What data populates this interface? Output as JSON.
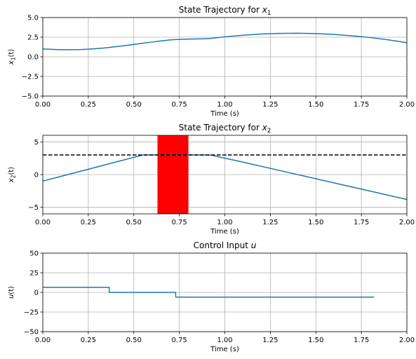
{
  "chart_data": [
    {
      "type": "line",
      "title": "State Trajectory for ",
      "title_var": "x",
      "title_sub": "1",
      "ylabel_main": "x",
      "ylabel_sub": "1",
      "ylabel_tail": "(t)",
      "xlabel": "Time (s)",
      "xlim": [
        0,
        2
      ],
      "ylim": [
        -5,
        5
      ],
      "xticks": [
        "0.00",
        "0.25",
        "0.50",
        "0.75",
        "1.00",
        "1.25",
        "1.50",
        "1.75",
        "2.00"
      ],
      "yticks": [
        "5.0",
        "2.5",
        "0.0",
        "−2.5",
        "−5.0"
      ],
      "ytick_values": [
        5,
        2.5,
        0,
        -2.5,
        -5
      ],
      "grid": true,
      "series": [
        {
          "color": "#1f77b4",
          "x": [
            0,
            0.05,
            0.1,
            0.15,
            0.2,
            0.25,
            0.3,
            0.35,
            0.4,
            0.45,
            0.5,
            0.55,
            0.6,
            0.65,
            0.7,
            0.73,
            0.8,
            0.9,
            0.92,
            1.0,
            1.1,
            1.2,
            1.3,
            1.4,
            1.5,
            1.6,
            1.7,
            1.8,
            1.9,
            2.0
          ],
          "y": [
            1.0,
            0.95,
            0.9,
            0.9,
            0.92,
            0.97,
            1.05,
            1.15,
            1.28,
            1.42,
            1.57,
            1.73,
            1.88,
            2.02,
            2.15,
            2.2,
            2.25,
            2.3,
            2.33,
            2.55,
            2.75,
            2.9,
            2.98,
            3.0,
            2.96,
            2.85,
            2.67,
            2.45,
            2.15,
            1.8
          ]
        }
      ]
    },
    {
      "type": "line",
      "title": "State Trajectory for ",
      "title_var": "x",
      "title_sub": "2",
      "ylabel_main": "x",
      "ylabel_sub": "2",
      "ylabel_tail": "(t)",
      "xlabel": "Time (s)",
      "xlim": [
        0,
        2
      ],
      "ylim": [
        -6,
        6
      ],
      "xticks": [
        "0.00",
        "0.25",
        "0.50",
        "0.75",
        "1.00",
        "1.25",
        "1.50",
        "1.75",
        "2.00"
      ],
      "yticks": [
        "5",
        "0",
        "−5"
      ],
      "ytick_values": [
        5,
        0,
        -5
      ],
      "grid": true,
      "hline": {
        "y": 3,
        "color": "#000000",
        "style": "dashed"
      },
      "shaded": {
        "x0": 0.63,
        "x1": 0.8,
        "color": "#ff0000"
      },
      "series": [
        {
          "color": "#1f77b4",
          "x": [
            0,
            0.55,
            0.92,
            1.1,
            2.0
          ],
          "y": [
            -1,
            3,
            3,
            1.9,
            -3.8
          ]
        }
      ]
    },
    {
      "type": "line",
      "title": "Control Input ",
      "title_var": "u",
      "title_sub": "",
      "ylabel_main": "u",
      "ylabel_sub": "",
      "ylabel_tail": "(t)",
      "xlabel": "Time (s)",
      "xlim": [
        0,
        2
      ],
      "ylim": [
        -50,
        50
      ],
      "xticks": [
        "0.00",
        "0.25",
        "0.50",
        "0.75",
        "1.00",
        "1.25",
        "1.50",
        "1.75",
        "2.00"
      ],
      "yticks": [
        "50",
        "25",
        "0",
        "−25",
        "−50"
      ],
      "ytick_values": [
        50,
        25,
        0,
        -25,
        -50
      ],
      "grid": true,
      "series": [
        {
          "color": "#1f77b4",
          "x": [
            0,
            0.365,
            0.365,
            0.73,
            0.73,
            1.82
          ],
          "y": [
            6.5,
            6.5,
            0,
            0,
            -6,
            -6
          ]
        }
      ]
    }
  ]
}
